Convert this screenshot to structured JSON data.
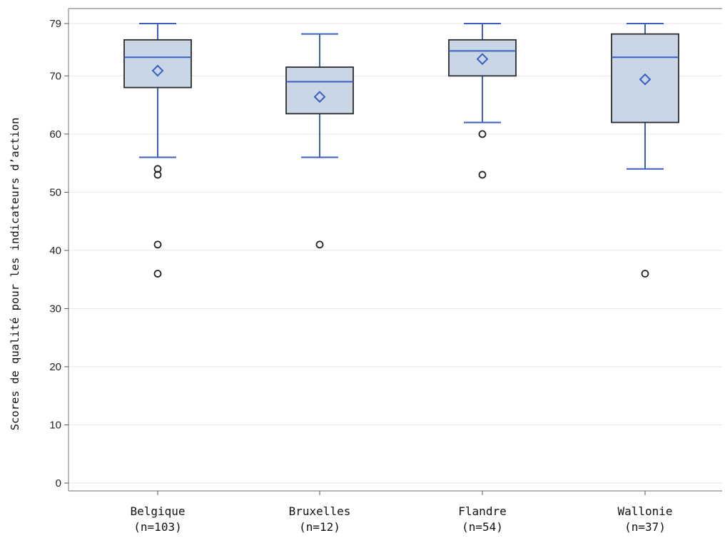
{
  "chart_data": {
    "type": "boxplot",
    "ylabel": "Scores de qualité pour les indicateurs d’action",
    "xlabel": "",
    "ylim": [
      0,
      79
    ],
    "yticks": [
      0,
      10,
      20,
      30,
      40,
      50,
      60,
      70,
      79
    ],
    "grid": "horizontal",
    "colors": {
      "box_fill": "#c9d6e6",
      "box_stroke": "#2b2b2b",
      "whisker": "#3a5fbf",
      "median": "#3a5fbf",
      "mean_marker": "#3a5fbf",
      "outlier": "#222222",
      "grid": "#e6e6e6"
    },
    "categories": [
      {
        "name": "Belgique",
        "n_label": "(n=103)",
        "q1": 68,
        "median": 73.2,
        "q3": 76.2,
        "mean": 70.9,
        "whisker_low": 56,
        "whisker_high": 79,
        "outliers": [
          54,
          53,
          41,
          36
        ]
      },
      {
        "name": "Bruxelles",
        "n_label": "(n=12)",
        "q1": 63.5,
        "median": 69,
        "q3": 71.5,
        "mean": 66.4,
        "whisker_low": 56,
        "whisker_high": 77.2,
        "outliers": [
          41
        ]
      },
      {
        "name": "Flandre",
        "n_label": "(n=54)",
        "q1": 70,
        "median": 74.3,
        "q3": 76.2,
        "mean": 72.9,
        "whisker_low": 62,
        "whisker_high": 79,
        "outliers": [
          60,
          53
        ]
      },
      {
        "name": "Wallonie",
        "n_label": "(n=37)",
        "q1": 62,
        "median": 73.2,
        "q3": 77.2,
        "mean": 69.4,
        "whisker_low": 54,
        "whisker_high": 79,
        "outliers": [
          36
        ]
      }
    ]
  }
}
